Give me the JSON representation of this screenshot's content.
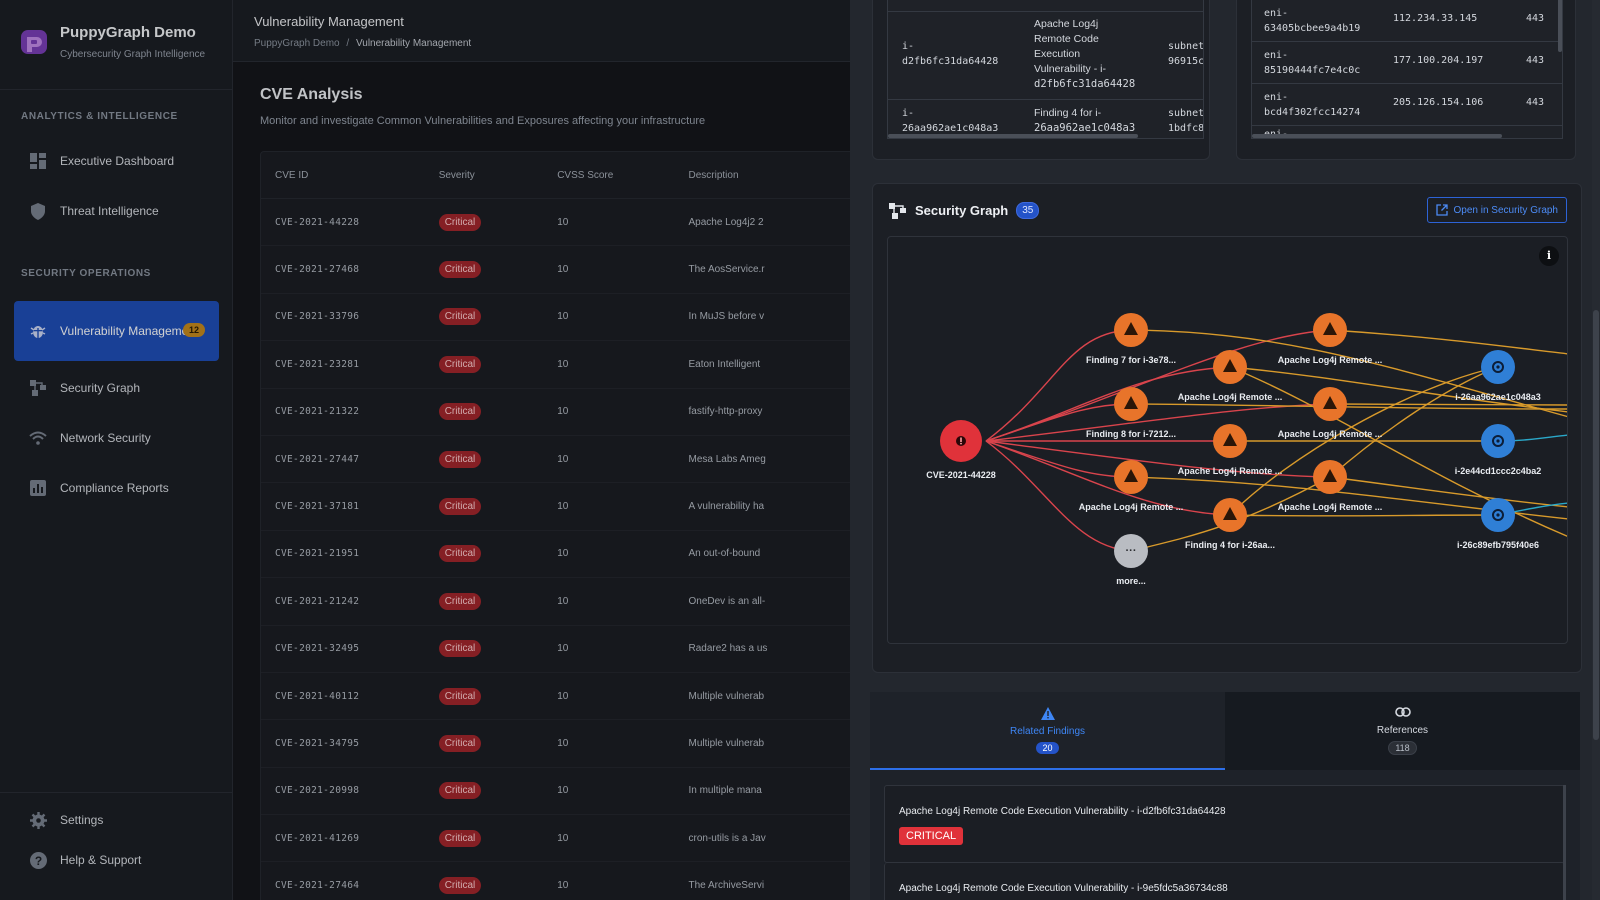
{
  "brand": {
    "title": "PuppyGraph Demo",
    "subtitle": "Cybersecurity Graph Intelligence"
  },
  "nav": {
    "section1": "ANALYTICS & INTELLIGENCE",
    "section2": "SECURITY OPERATIONS",
    "items": [
      {
        "label": "Executive Dashboard",
        "icon": "dashboard-icon"
      },
      {
        "label": "Threat Intelligence",
        "icon": "shield-icon"
      },
      {
        "label": "Vulnerability Management",
        "icon": "bug-icon",
        "badge": "12"
      },
      {
        "label": "Security Graph",
        "icon": "graph-icon"
      },
      {
        "label": "Network Security",
        "icon": "wifi-icon"
      },
      {
        "label": "Compliance Reports",
        "icon": "chart-icon"
      }
    ],
    "bottom": [
      {
        "label": "Settings",
        "icon": "gear-icon"
      },
      {
        "label": "Help & Support",
        "icon": "help-icon"
      }
    ]
  },
  "topbar": {
    "title": "Vulnerability Management",
    "breadcrumb_root": "PuppyGraph Demo",
    "breadcrumb_sep": "/",
    "breadcrumb_current": "Vulnerability Management"
  },
  "cve": {
    "title": "CVE Analysis",
    "subtitle": "Monitor and investigate Common Vulnerabilities and Exposures affecting your infrastructure",
    "columns": [
      "CVE ID",
      "Severity",
      "CVSS Score",
      "Description"
    ],
    "rows": [
      {
        "id": "CVE-2021-44228",
        "severity": "Critical",
        "score": "10",
        "desc": "Apache Log4j2 2"
      },
      {
        "id": "CVE-2021-27468",
        "severity": "Critical",
        "score": "10",
        "desc": "The AosService.r"
      },
      {
        "id": "CVE-2021-33796",
        "severity": "Critical",
        "score": "10",
        "desc": "In MuJS before v"
      },
      {
        "id": "CVE-2021-23281",
        "severity": "Critical",
        "score": "10",
        "desc": "Eaton Intelligent"
      },
      {
        "id": "CVE-2021-21322",
        "severity": "Critical",
        "score": "10",
        "desc": "fastify-http-proxy"
      },
      {
        "id": "CVE-2021-27447",
        "severity": "Critical",
        "score": "10",
        "desc": "Mesa Labs Ameg"
      },
      {
        "id": "CVE-2021-37181",
        "severity": "Critical",
        "score": "10",
        "desc": "A vulnerability ha"
      },
      {
        "id": "CVE-2021-21951",
        "severity": "Critical",
        "score": "10",
        "desc": "An out-of-bound"
      },
      {
        "id": "CVE-2021-21242",
        "severity": "Critical",
        "score": "10",
        "desc": "OneDev is an all-"
      },
      {
        "id": "CVE-2021-32495",
        "severity": "Critical",
        "score": "10",
        "desc": "Radare2 has a us"
      },
      {
        "id": "CVE-2021-40112",
        "severity": "Critical",
        "score": "10",
        "desc": "Multiple vulnerab"
      },
      {
        "id": "CVE-2021-34795",
        "severity": "Critical",
        "score": "10",
        "desc": "Multiple vulnerab"
      },
      {
        "id": "CVE-2021-20998",
        "severity": "Critical",
        "score": "10",
        "desc": "In multiple mana"
      },
      {
        "id": "CVE-2021-41269",
        "severity": "Critical",
        "score": "10",
        "desc": "cron-utils is a Jav"
      },
      {
        "id": "CVE-2021-27464",
        "severity": "Critical",
        "score": "10",
        "desc": "The ArchiveServi"
      }
    ]
  },
  "instances": [
    {
      "id_a": "i-",
      "id_b": "d2fb6fc31da64428",
      "f1": "Apache Log4j",
      "f2": "Remote Code",
      "f3": "Execution",
      "f4": "Vulnerability - i-",
      "f5": "d2fb6fc31da64428",
      "s1": "subnet",
      "s2": "96915c"
    },
    {
      "id_a": "i-",
      "id_b": "26aa962ae1c048a3",
      "f1": "Finding 4 for i-",
      "f2": "26aa962ae1c048a3",
      "s1": "subnet",
      "s2": "1bdfc8"
    }
  ],
  "enis": [
    {
      "a": "eni-",
      "b": "63405bcbee9a4b19",
      "ip": "112.234.33.145",
      "port": "443"
    },
    {
      "a": "eni-",
      "b": "85190444fc7e4c0c",
      "ip": "177.100.204.197",
      "port": "443"
    },
    {
      "a": "eni-",
      "b": "bcd4f302fcc14274",
      "ip": "205.126.154.106",
      "port": "443"
    },
    {
      "a": "eni-",
      "b": "",
      "ip": "",
      "port": ""
    }
  ],
  "security_graph": {
    "title": "Security Graph",
    "count": "35",
    "open_button": "Open in Security Graph",
    "nodes": {
      "root": "CVE-2021-44228",
      "f1": "Finding 7 for i-3e78...",
      "f2": "Finding 8 for i-7212...",
      "f3": "Apache Log4j Remote ...",
      "more": "more...",
      "m1": "Apache Log4j Remote ...",
      "m2": "Apache Log4j Remote ...",
      "m3": "Finding 4 for i-26aa...",
      "r1": "Apache Log4j Remote ...",
      "r2": "Apache Log4j Remote ...",
      "r3": "Apache Log4j Remote ...",
      "i1": "i-26aa962ae1c048a3",
      "i2": "i-2e44cd1ccc2c4ba2",
      "i3": "i-26c89efb795f40e6"
    }
  },
  "tabs": [
    {
      "label": "Related Findings",
      "count": "20",
      "icon": "warning-icon"
    },
    {
      "label": "References",
      "count": "118",
      "icon": "link-icon"
    }
  ],
  "findings": [
    {
      "title": "Apache Log4j Remote Code Execution Vulnerability - i-d2fb6fc31da64428",
      "severity": "CRITICAL"
    },
    {
      "title": "Apache Log4j Remote Code Execution Vulnerability - i-9e5fdc5a36734c88"
    }
  ],
  "colors": {
    "accent": "#2453c8",
    "critical": "#e0323a",
    "finding": "#e8742a",
    "instance": "#2f7fd6",
    "edge_red": "#d9444c",
    "edge_orange": "#d89a2b"
  }
}
